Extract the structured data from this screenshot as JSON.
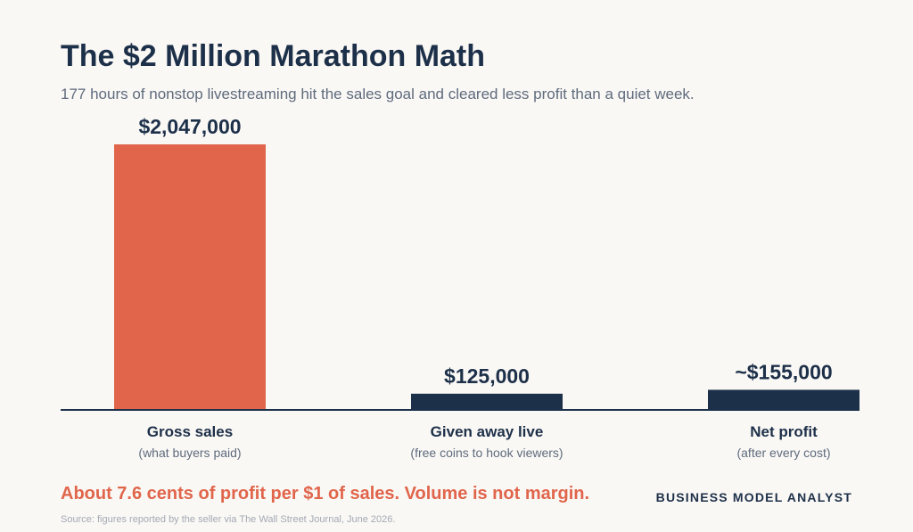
{
  "title": "The $2 Million Marathon Math",
  "subtitle": "177 hours of nonstop livestreaming hit the sales goal and cleared less profit than a quiet week.",
  "takeaway": "About 7.6 cents of profit per $1 of sales. Volume is not margin.",
  "brand": "BUSINESS MODEL ANALYST",
  "source": "Source: figures reported by the seller via The Wall Street Journal, June 2026.",
  "colors": {
    "accent": "#e0654b",
    "navy": "#1d3049",
    "muted": "#5f6b7d",
    "background": "#faf8f5"
  },
  "chart_data": {
    "type": "bar",
    "categories": [
      "Gross sales",
      "Given away live",
      "Net profit"
    ],
    "sublabels": [
      "(what buyers paid)",
      "(free coins to hook viewers)",
      "(after every cost)"
    ],
    "values": [
      2047000,
      125000,
      155000
    ],
    "value_labels": [
      "$2,047,000",
      "$125,000",
      "~$155,000"
    ],
    "bar_colors": [
      "#e0654b",
      "#1d3049",
      "#1d3049"
    ],
    "ylim": [
      0,
      2047000
    ],
    "grid": false,
    "legend": "none"
  }
}
